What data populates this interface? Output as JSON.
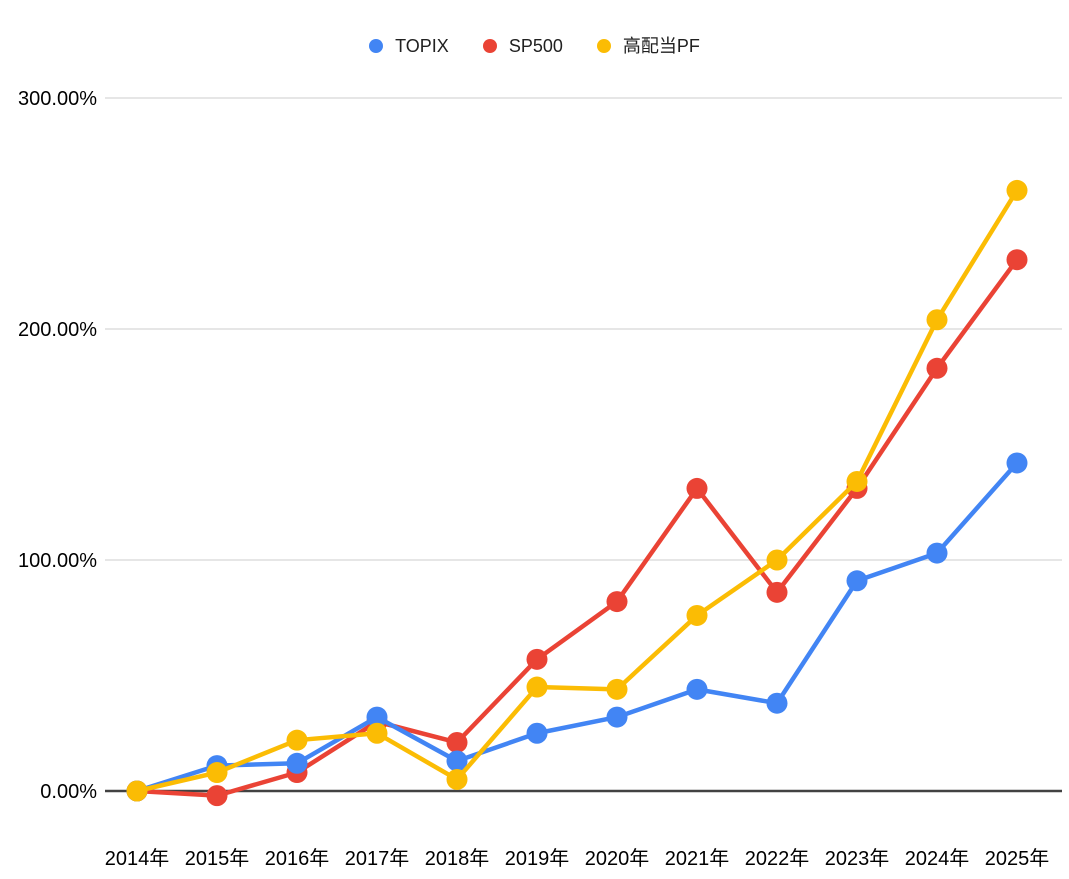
{
  "legend": {
    "items": [
      {
        "label": "TOPIX",
        "color": "#4285F4"
      },
      {
        "label": "SP500",
        "color": "#EA4335"
      },
      {
        "label": "高配当PF",
        "color": "#FBBC04"
      }
    ]
  },
  "chart_data": {
    "type": "line",
    "title": "",
    "xlabel": "",
    "ylabel": "",
    "x_categories": [
      "2014年",
      "2015年",
      "2016年",
      "2017年",
      "2018年",
      "2019年",
      "2020年",
      "2021年",
      "2022年",
      "2023年",
      "2024年",
      "2025年"
    ],
    "y_ticks": [
      0,
      100,
      200,
      300
    ],
    "y_tick_labels": [
      "0.00%",
      "100.00%",
      "200.00%",
      "300.00%"
    ],
    "ylim": [
      0,
      300
    ],
    "grid": true,
    "legend_position": "top",
    "series": [
      {
        "name": "TOPIX",
        "color": "#4285F4",
        "values": [
          0,
          11,
          12,
          32,
          13,
          25,
          32,
          44,
          38,
          91,
          103,
          142
        ]
      },
      {
        "name": "SP500",
        "color": "#EA4335",
        "values": [
          0,
          -2,
          8,
          30,
          21,
          57,
          82,
          131,
          86,
          131,
          183,
          230
        ]
      },
      {
        "name": "高配当PF",
        "color": "#FBBC04",
        "values": [
          0,
          8,
          22,
          25,
          5,
          45,
          44,
          76,
          100,
          134,
          204,
          260
        ]
      }
    ],
    "colors": {
      "grid": "#E6E6E6",
      "axis": "#424242",
      "text": "#000000"
    }
  }
}
